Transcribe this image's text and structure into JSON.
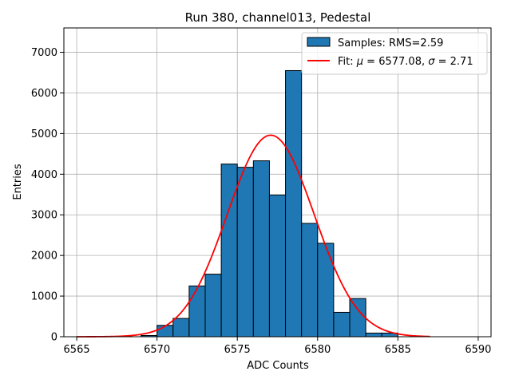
{
  "chart_data": {
    "type": "bar",
    "title": "Run 380, channel013, Pedestal",
    "xlabel": "ADC Counts",
    "ylabel": "Entries",
    "xlim": [
      6564.2,
      6590.8
    ],
    "ylim": [
      0,
      7600
    ],
    "xticks": [
      6565,
      6570,
      6575,
      6580,
      6585,
      6590
    ],
    "yticks": [
      0,
      1000,
      2000,
      3000,
      4000,
      5000,
      6000,
      7000
    ],
    "grid": true,
    "legend_position": "top-right",
    "bar_color": "#1f77b4",
    "fit_color": "#ff0000",
    "bin_width": 1,
    "bins": [
      {
        "left": 6569,
        "value": 30
      },
      {
        "left": 6570,
        "value": 280
      },
      {
        "left": 6571,
        "value": 450
      },
      {
        "left": 6572,
        "value": 1250
      },
      {
        "left": 6573,
        "value": 1540
      },
      {
        "left": 6574,
        "value": 4250
      },
      {
        "left": 6575,
        "value": 4170
      },
      {
        "left": 6576,
        "value": 4330
      },
      {
        "left": 6577,
        "value": 3490
      },
      {
        "left": 6578,
        "value": 6550
      },
      {
        "left": 6579,
        "value": 2790
      },
      {
        "left": 6580,
        "value": 2300
      },
      {
        "left": 6581,
        "value": 600
      },
      {
        "left": 6582,
        "value": 940
      },
      {
        "left": 6583,
        "value": 90
      },
      {
        "left": 6584,
        "value": 90
      }
    ],
    "fit": {
      "type": "gaussian",
      "mu": 6577.08,
      "sigma": 2.71,
      "amplitude": 4960,
      "x_range": [
        6565,
        6587
      ]
    },
    "legend": {
      "samples_label": "Samples: RMS=2.59",
      "fit_prefix": "Fit: ",
      "mu_symbol": "μ",
      "mu_text": " = 6577.08, ",
      "sigma_symbol": "σ",
      "sigma_text": " = 2.71"
    }
  }
}
